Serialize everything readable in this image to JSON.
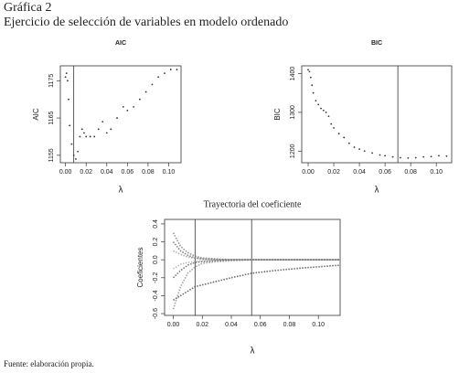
{
  "header": {
    "label": "Gráfica 2",
    "title": "Ejercicio de selección de variables en modelo ordenado"
  },
  "footer": {
    "source": "Fuente: elaboración propia."
  },
  "chart_data": [
    {
      "type": "scatter",
      "title": "AIC",
      "xlabel": "λ",
      "ylabel": "AIC",
      "color": "#333333",
      "x": [
        0,
        0.001,
        0.002,
        0.003,
        0.004,
        0.006,
        0.008,
        0.01,
        0.012,
        0.014,
        0.016,
        0.018,
        0.02,
        0.024,
        0.028,
        0.032,
        0.036,
        0.04,
        0.044,
        0.05,
        0.056,
        0.06,
        0.066,
        0.072,
        0.078,
        0.084,
        0.09,
        0.096,
        0.102,
        0.108
      ],
      "values": [
        1176,
        1177,
        1175,
        1170,
        1163,
        1158,
        1155,
        1154,
        1156,
        1160,
        1162,
        1161,
        1160,
        1160,
        1160,
        1162,
        1164,
        1161,
        1162,
        1165,
        1168,
        1167,
        1168,
        1170,
        1172,
        1174,
        1176,
        1177,
        1178,
        1178
      ],
      "vlines": [
        0.008
      ],
      "xlim": [
        -0.005,
        0.112
      ],
      "ylim": [
        1153,
        1179
      ],
      "xticks": [
        {
          "value": 0,
          "label": "0.00"
        },
        {
          "value": 0.02,
          "label": "0.02"
        },
        {
          "value": 0.04,
          "label": "0.04"
        },
        {
          "value": 0.06,
          "label": "0.06"
        },
        {
          "value": 0.08,
          "label": "0.08"
        },
        {
          "value": 0.1,
          "label": "0.10"
        }
      ],
      "yticks": [
        1155,
        1165,
        1175
      ]
    },
    {
      "type": "scatter",
      "title": "BIC",
      "xlabel": "λ",
      "ylabel": "BIC",
      "color": "#333333",
      "x": [
        0,
        0.001,
        0.002,
        0.003,
        0.004,
        0.006,
        0.008,
        0.01,
        0.012,
        0.014,
        0.016,
        0.018,
        0.02,
        0.024,
        0.028,
        0.032,
        0.036,
        0.04,
        0.044,
        0.05,
        0.056,
        0.06,
        0.066,
        0.072,
        0.078,
        0.084,
        0.09,
        0.096,
        0.102,
        0.108
      ],
      "values": [
        1410,
        1405,
        1390,
        1370,
        1350,
        1330,
        1320,
        1310,
        1305,
        1300,
        1290,
        1270,
        1260,
        1245,
        1235,
        1220,
        1210,
        1205,
        1200,
        1195,
        1190,
        1188,
        1185,
        1183,
        1182,
        1183,
        1185,
        1186,
        1188,
        1187
      ],
      "vlines": [
        0.07
      ],
      "xlim": [
        -0.005,
        0.112
      ],
      "ylim": [
        1170,
        1420
      ],
      "xticks": [
        {
          "value": 0,
          "label": "0.00"
        },
        {
          "value": 0.02,
          "label": "0.02"
        },
        {
          "value": 0.04,
          "label": "0.04"
        },
        {
          "value": 0.06,
          "label": "0.06"
        },
        {
          "value": 0.08,
          "label": "0.08"
        },
        {
          "value": 0.1,
          "label": "0.10"
        }
      ],
      "yticks": [
        1200,
        1300,
        1400
      ]
    },
    {
      "type": "line",
      "title": "Trayectoria del coeficiente",
      "xlabel": "λ",
      "ylabel": "Coeficientes",
      "x": [
        0,
        0.005,
        0.01,
        0.015,
        0.02,
        0.03,
        0.04,
        0.054,
        0.07,
        0.09,
        0.115
      ],
      "series": [
        {
          "color": "#444444",
          "values": [
            -0.45,
            -0.4,
            -0.35,
            -0.3,
            -0.28,
            -0.24,
            -0.2,
            -0.15,
            -0.12,
            -0.09,
            -0.06
          ]
        },
        {
          "color": "#777777",
          "values": [
            0.3,
            0.15,
            0.08,
            0.04,
            0.02,
            0.01,
            0,
            0,
            0,
            0,
            0
          ]
        },
        {
          "color": "#888888",
          "values": [
            -0.55,
            -0.3,
            -0.15,
            -0.08,
            -0.04,
            -0.02,
            -0.01,
            0,
            0,
            0,
            0
          ]
        },
        {
          "color": "#666666",
          "values": [
            0.2,
            0.1,
            0.05,
            0.02,
            0.01,
            0,
            0,
            0,
            0,
            0,
            0
          ]
        },
        {
          "color": "#555555",
          "values": [
            -0.2,
            -0.12,
            -0.06,
            -0.03,
            -0.02,
            -0.01,
            0,
            0,
            0,
            0,
            0
          ]
        },
        {
          "color": "#999999",
          "values": [
            0.1,
            0.06,
            0.03,
            0.02,
            0.01,
            0.005,
            0,
            0,
            0,
            0,
            0
          ]
        },
        {
          "color": "#aaaaaa",
          "values": [
            -0.1,
            -0.05,
            -0.03,
            -0.02,
            -0.01,
            0,
            0,
            0,
            0,
            0,
            0
          ]
        }
      ],
      "vlines": [
        0.015,
        0.054
      ],
      "xlim": [
        -0.006,
        0.115
      ],
      "ylim": [
        -0.62,
        0.45
      ],
      "xticks": [
        {
          "value": 0,
          "label": "0.00"
        },
        {
          "value": 0.02,
          "label": "0.02"
        },
        {
          "value": 0.04,
          "label": "0.04"
        },
        {
          "value": 0.06,
          "label": "0.06"
        },
        {
          "value": 0.08,
          "label": "0.08"
        },
        {
          "value": 0.1,
          "label": "0.10"
        }
      ],
      "yticks": [
        0.4,
        0.2,
        {
          "value": 0,
          "label": "0.0"
        },
        -0.2,
        -0.4,
        -0.6
      ]
    }
  ]
}
